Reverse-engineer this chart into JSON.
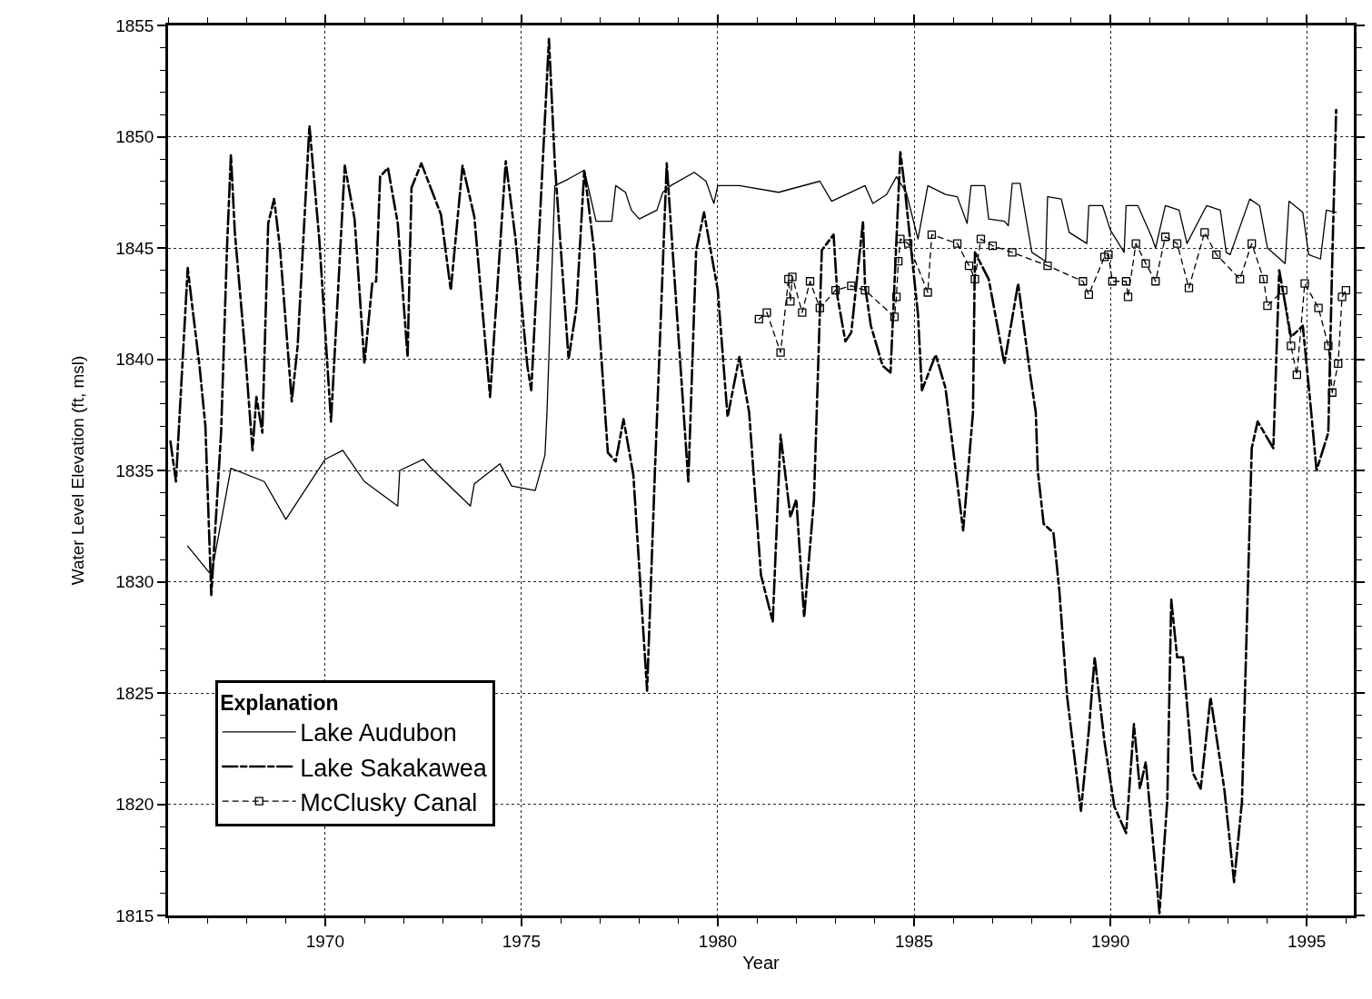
{
  "chart_data": {
    "type": "line",
    "xlabel": "Year",
    "ylabel": "Water Level Elevation (ft, msl)",
    "legend_title": "Explanation",
    "xlim": [
      1966,
      1996.2
    ],
    "ylim": [
      1815,
      1855
    ],
    "xticks": [
      {
        "value": 1966,
        "label": null
      },
      {
        "value": 1967,
        "label": null
      },
      {
        "value": 1968,
        "label": null
      },
      {
        "value": 1969,
        "label": null
      },
      1970,
      {
        "value": 1971,
        "label": null
      },
      {
        "value": 1972,
        "label": null
      },
      {
        "value": 1973,
        "label": null
      },
      {
        "value": 1974,
        "label": null
      },
      1975,
      {
        "value": 1976,
        "label": null
      },
      {
        "value": 1977,
        "label": null
      },
      {
        "value": 1978,
        "label": null
      },
      {
        "value": 1979,
        "label": null
      },
      1980,
      {
        "value": 1981,
        "label": null
      },
      {
        "value": 1982,
        "label": null
      },
      {
        "value": 1983,
        "label": null
      },
      {
        "value": 1984,
        "label": null
      },
      1985,
      {
        "value": 1986,
        "label": null
      },
      {
        "value": 1987,
        "label": null
      },
      {
        "value": 1988,
        "label": null
      },
      {
        "value": 1989,
        "label": null
      },
      1990,
      {
        "value": 1991,
        "label": null
      },
      {
        "value": 1992,
        "label": null
      },
      {
        "value": 1993,
        "label": null
      },
      {
        "value": 1994,
        "label": null
      },
      1995,
      {
        "value": 1996,
        "label": null
      }
    ],
    "yticks": [
      1815,
      {
        "value": 1816,
        "label": null
      },
      {
        "value": 1817,
        "label": null
      },
      {
        "value": 1818,
        "label": null
      },
      {
        "value": 1819,
        "label": null
      },
      1820,
      {
        "value": 1821,
        "label": null
      },
      {
        "value": 1822,
        "label": null
      },
      {
        "value": 1823,
        "label": null
      },
      {
        "value": 1824,
        "label": null
      },
      1825,
      {
        "value": 1826,
        "label": null
      },
      {
        "value": 1827,
        "label": null
      },
      {
        "value": 1828,
        "label": null
      },
      {
        "value": 1829,
        "label": null
      },
      1830,
      {
        "value": 1831,
        "label": null
      },
      {
        "value": 1832,
        "label": null
      },
      {
        "value": 1833,
        "label": null
      },
      {
        "value": 1834,
        "label": null
      },
      1835,
      {
        "value": 1836,
        "label": null
      },
      {
        "value": 1837,
        "label": null
      },
      {
        "value": 1838,
        "label": null
      },
      {
        "value": 1839,
        "label": null
      },
      1840,
      {
        "value": 1841,
        "label": null
      },
      {
        "value": 1842,
        "label": null
      },
      {
        "value": 1843,
        "label": null
      },
      {
        "value": 1844,
        "label": null
      },
      1845,
      {
        "value": 1846,
        "label": null
      },
      {
        "value": 1847,
        "label": null
      },
      {
        "value": 1848,
        "label": null
      },
      {
        "value": 1849,
        "label": null
      },
      1850,
      {
        "value": 1851,
        "label": null
      },
      {
        "value": 1852,
        "label": null
      },
      {
        "value": 1853,
        "label": null
      },
      {
        "value": 1854,
        "label": null
      },
      1855
    ],
    "grid": true,
    "legend": "bottom left",
    "series": [
      {
        "name": "Lake Audubon",
        "color": "#000000",
        "line_style": "solid",
        "marker": "none",
        "x": [
          1966.5,
          1967.1,
          1967.6,
          1968.45,
          1969.0,
          1970.0,
          1970.45,
          1971.0,
          1971.85,
          1971.9,
          1972.5,
          1972.7,
          1973.7,
          1973.8,
          1974.45,
          1974.75,
          1975.35,
          1975.6,
          1975.65,
          1975.85,
          1976.2,
          1976.5,
          1976.6,
          1976.9,
          1977.3,
          1977.4,
          1977.65,
          1977.8,
          1978.0,
          1978.45,
          1978.6,
          1978.8,
          1979.4,
          1979.7,
          1979.9,
          1980.0,
          1980.55,
          1981.55,
          1982.6,
          1982.9,
          1983.75,
          1983.95,
          1984.3,
          1984.55,
          1984.8,
          1985.1,
          1985.35,
          1985.8,
          1986.1,
          1986.35,
          1986.45,
          1986.8,
          1986.9,
          1987.3,
          1987.4,
          1987.5,
          1987.7,
          1988.0,
          1988.35,
          1988.4,
          1988.75,
          1988.95,
          1989.4,
          1989.45,
          1989.8,
          1990.0,
          1990.35,
          1990.4,
          1990.7,
          1991.05,
          1991.15,
          1991.4,
          1991.75,
          1991.95,
          1992.45,
          1992.8,
          1992.95,
          1993.05,
          1993.55,
          1993.8,
          1994.0,
          1994.45,
          1994.55,
          1994.9,
          1995.05,
          1995.35,
          1995.5,
          1995.75
        ],
        "values": [
          1831.6,
          1830.3,
          1835.1,
          1834.5,
          1832.8,
          1835.5,
          1835.9,
          1834.5,
          1833.4,
          1835.0,
          1835.5,
          1835.1,
          1833.4,
          1834.4,
          1835.3,
          1834.3,
          1834.1,
          1835.7,
          1837.6,
          1847.8,
          1848.1,
          1848.4,
          1848.5,
          1846.2,
          1846.2,
          1847.8,
          1847.5,
          1846.7,
          1846.3,
          1846.7,
          1847.5,
          1847.8,
          1848.4,
          1848.0,
          1847.0,
          1847.8,
          1847.8,
          1847.5,
          1848.0,
          1847.1,
          1847.8,
          1847.0,
          1847.4,
          1848.2,
          1847.5,
          1845.4,
          1847.8,
          1847.4,
          1847.3,
          1846.1,
          1847.8,
          1847.8,
          1846.3,
          1846.2,
          1846.0,
          1847.9,
          1847.9,
          1844.8,
          1844.4,
          1847.3,
          1847.2,
          1845.7,
          1845.2,
          1846.9,
          1846.9,
          1845.8,
          1844.8,
          1846.9,
          1846.9,
          1845.5,
          1845.0,
          1846.9,
          1846.7,
          1845.2,
          1846.9,
          1846.7,
          1844.8,
          1844.7,
          1847.2,
          1846.9,
          1845.0,
          1844.3,
          1847.1,
          1846.6,
          1844.7,
          1844.5,
          1846.7,
          1846.6
        ]
      },
      {
        "name": "Lake Sakakawea",
        "color": "#000000",
        "line_style": "dashed",
        "marker": "none",
        "x": [
          1966.06,
          1966.2,
          1966.5,
          1966.6,
          1966.8,
          1966.95,
          1967.1,
          1967.35,
          1967.5,
          1967.6,
          1967.7,
          1967.95,
          1968.15,
          1968.25,
          1968.4,
          1968.55,
          1968.7,
          1968.85,
          1969.15,
          1969.3,
          1969.6,
          1969.85,
          1970.15,
          1970.5,
          1970.75,
          1971.0,
          1971.2,
          1971.3,
          1971.4,
          1971.6,
          1971.85,
          1972.1,
          1972.2,
          1972.45,
          1972.95,
          1973.2,
          1973.5,
          1973.8,
          1974.2,
          1974.6,
          1974.85,
          1975.15,
          1975.25,
          1975.7,
          1975.85,
          1976.2,
          1976.4,
          1976.6,
          1976.85,
          1977.2,
          1977.4,
          1977.6,
          1977.85,
          1978.2,
          1978.4,
          1978.7,
          1978.9,
          1979.25,
          1979.45,
          1979.65,
          1980.0,
          1980.25,
          1980.55,
          1980.8,
          1981.1,
          1981.4,
          1981.6,
          1981.85,
          1982.0,
          1982.2,
          1982.45,
          1982.65,
          1982.95,
          1983.05,
          1983.25,
          1983.4,
          1983.7,
          1983.75,
          1983.9,
          1984.2,
          1984.4,
          1984.65,
          1984.75,
          1985.1,
          1985.2,
          1985.55,
          1985.8,
          1986.25,
          1986.5,
          1986.55,
          1986.9,
          1987.3,
          1987.65,
          1987.95,
          1988.1,
          1988.15,
          1988.3,
          1988.55,
          1988.7,
          1988.9,
          1989.25,
          1989.45,
          1989.6,
          1989.85,
          1990.1,
          1990.4,
          1990.6,
          1990.75,
          1990.9,
          1991.25,
          1991.45,
          1991.55,
          1991.7,
          1991.85,
          1992.1,
          1992.3,
          1992.55,
          1992.9,
          1993.15,
          1993.35,
          1993.6,
          1993.75,
          1994.15,
          1994.3,
          1994.6,
          1994.9,
          1995.1,
          1995.25,
          1995.55,
          1995.65,
          1995.75
        ],
        "values": [
          1836.3,
          1834.5,
          1844.1,
          1842.6,
          1839.7,
          1837.0,
          1829.4,
          1836.7,
          1845.0,
          1849.2,
          1845.7,
          1840.6,
          1835.9,
          1838.3,
          1836.7,
          1846.1,
          1847.2,
          1845.0,
          1838.1,
          1840.6,
          1850.5,
          1845.4,
          1837.2,
          1848.7,
          1846.3,
          1839.8,
          1843.4,
          1843.5,
          1848.2,
          1848.6,
          1846.1,
          1840.1,
          1847.7,
          1848.8,
          1846.5,
          1843.1,
          1848.7,
          1846.4,
          1838.3,
          1848.9,
          1845.4,
          1839.7,
          1838.6,
          1854.4,
          1848.8,
          1840.0,
          1842.3,
          1848.5,
          1844.9,
          1835.8,
          1835.4,
          1837.3,
          1834.8,
          1825.1,
          1835.0,
          1848.8,
          1843.6,
          1834.5,
          1844.9,
          1846.6,
          1843.1,
          1837.4,
          1840.1,
          1837.6,
          1830.3,
          1828.2,
          1836.6,
          1832.9,
          1833.7,
          1828.4,
          1833.7,
          1844.9,
          1845.6,
          1842.8,
          1840.8,
          1841.2,
          1846.2,
          1843.3,
          1841.5,
          1839.7,
          1839.4,
          1849.3,
          1847.9,
          1842.0,
          1838.6,
          1840.2,
          1838.7,
          1832.3,
          1837.6,
          1844.8,
          1843.6,
          1839.8,
          1843.4,
          1839.4,
          1837.6,
          1835.0,
          1832.6,
          1832.2,
          1829.6,
          1824.8,
          1819.7,
          1823.3,
          1826.6,
          1822.8,
          1819.9,
          1818.7,
          1823.6,
          1820.7,
          1821.9,
          1815.1,
          1820.2,
          1829.2,
          1826.6,
          1826.6,
          1821.4,
          1820.7,
          1824.8,
          1820.7,
          1816.5,
          1820.1,
          1836.0,
          1837.2,
          1836.0,
          1844.0,
          1841.0,
          1841.5,
          1837.9,
          1835.0,
          1836.7,
          1844.4,
          1851.2
        ]
      },
      {
        "name": "McClusky Canal",
        "color": "#000000",
        "line_style": "dashed",
        "marker": "square",
        "x": [
          1981.05,
          1981.25,
          1981.6,
          1981.8,
          1981.85,
          1981.9,
          1982.15,
          1982.35,
          1982.6,
          1983.0,
          1983.4,
          1983.75,
          1984.5,
          1984.55,
          1984.6,
          1984.65,
          1984.85,
          1985.35,
          1985.45,
          1986.1,
          1986.4,
          1986.55,
          1986.7,
          1987.0,
          1987.5,
          1988.4,
          1989.3,
          1989.45,
          1989.85,
          1989.95,
          1990.05,
          1990.4,
          1990.45,
          1990.65,
          1990.9,
          1991.15,
          1991.4,
          1991.7,
          1992.0,
          1992.4,
          1992.7,
          1993.3,
          1993.6,
          1993.9,
          1994.0,
          1994.4,
          1994.6,
          1994.75,
          1994.95,
          1995.3,
          1995.55,
          1995.65,
          1995.8,
          1995.9,
          1996.0
        ],
        "values": [
          1841.8,
          1842.1,
          1840.3,
          1843.6,
          1842.6,
          1843.7,
          1842.1,
          1843.5,
          1842.3,
          1843.1,
          1843.3,
          1843.1,
          1841.9,
          1842.8,
          1844.4,
          1845.4,
          1845.2,
          1843.0,
          1845.6,
          1845.2,
          1844.2,
          1843.6,
          1845.4,
          1845.1,
          1844.8,
          1844.2,
          1843.5,
          1842.9,
          1844.6,
          1844.7,
          1843.5,
          1843.5,
          1842.8,
          1845.2,
          1844.3,
          1843.5,
          1845.5,
          1845.2,
          1843.2,
          1845.7,
          1844.7,
          1843.6,
          1845.2,
          1843.6,
          1842.4,
          1843.1,
          1840.6,
          1839.3,
          1843.4,
          1842.3,
          1840.6,
          1838.5,
          1839.8,
          1842.8,
          1843.1
        ]
      }
    ]
  }
}
